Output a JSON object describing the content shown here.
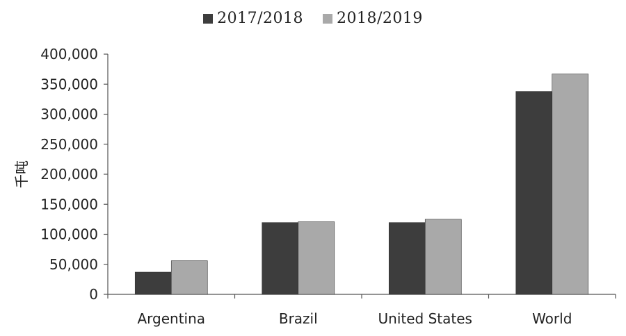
{
  "chart_data": {
    "type": "bar",
    "categories": [
      "Argentina",
      "Brazil",
      "United States",
      "World"
    ],
    "series": [
      {
        "name": "2017/2018",
        "values": [
          37000,
          119500,
          119500,
          338000
        ],
        "color": "#3d3d3d"
      },
      {
        "name": "2018/2019",
        "values": [
          56000,
          121000,
          125000,
          367000
        ],
        "color": "#a9a9a9"
      }
    ],
    "ylabel": "千吨",
    "xlabel": "",
    "title": "",
    "ylim": [
      0,
      400000
    ],
    "yticks": [
      "0",
      "50,000",
      "100,000",
      "150,000",
      "200,000",
      "250,000",
      "300,000",
      "350,000",
      "400,000"
    ],
    "grid": false,
    "legend_position": "top-center"
  }
}
